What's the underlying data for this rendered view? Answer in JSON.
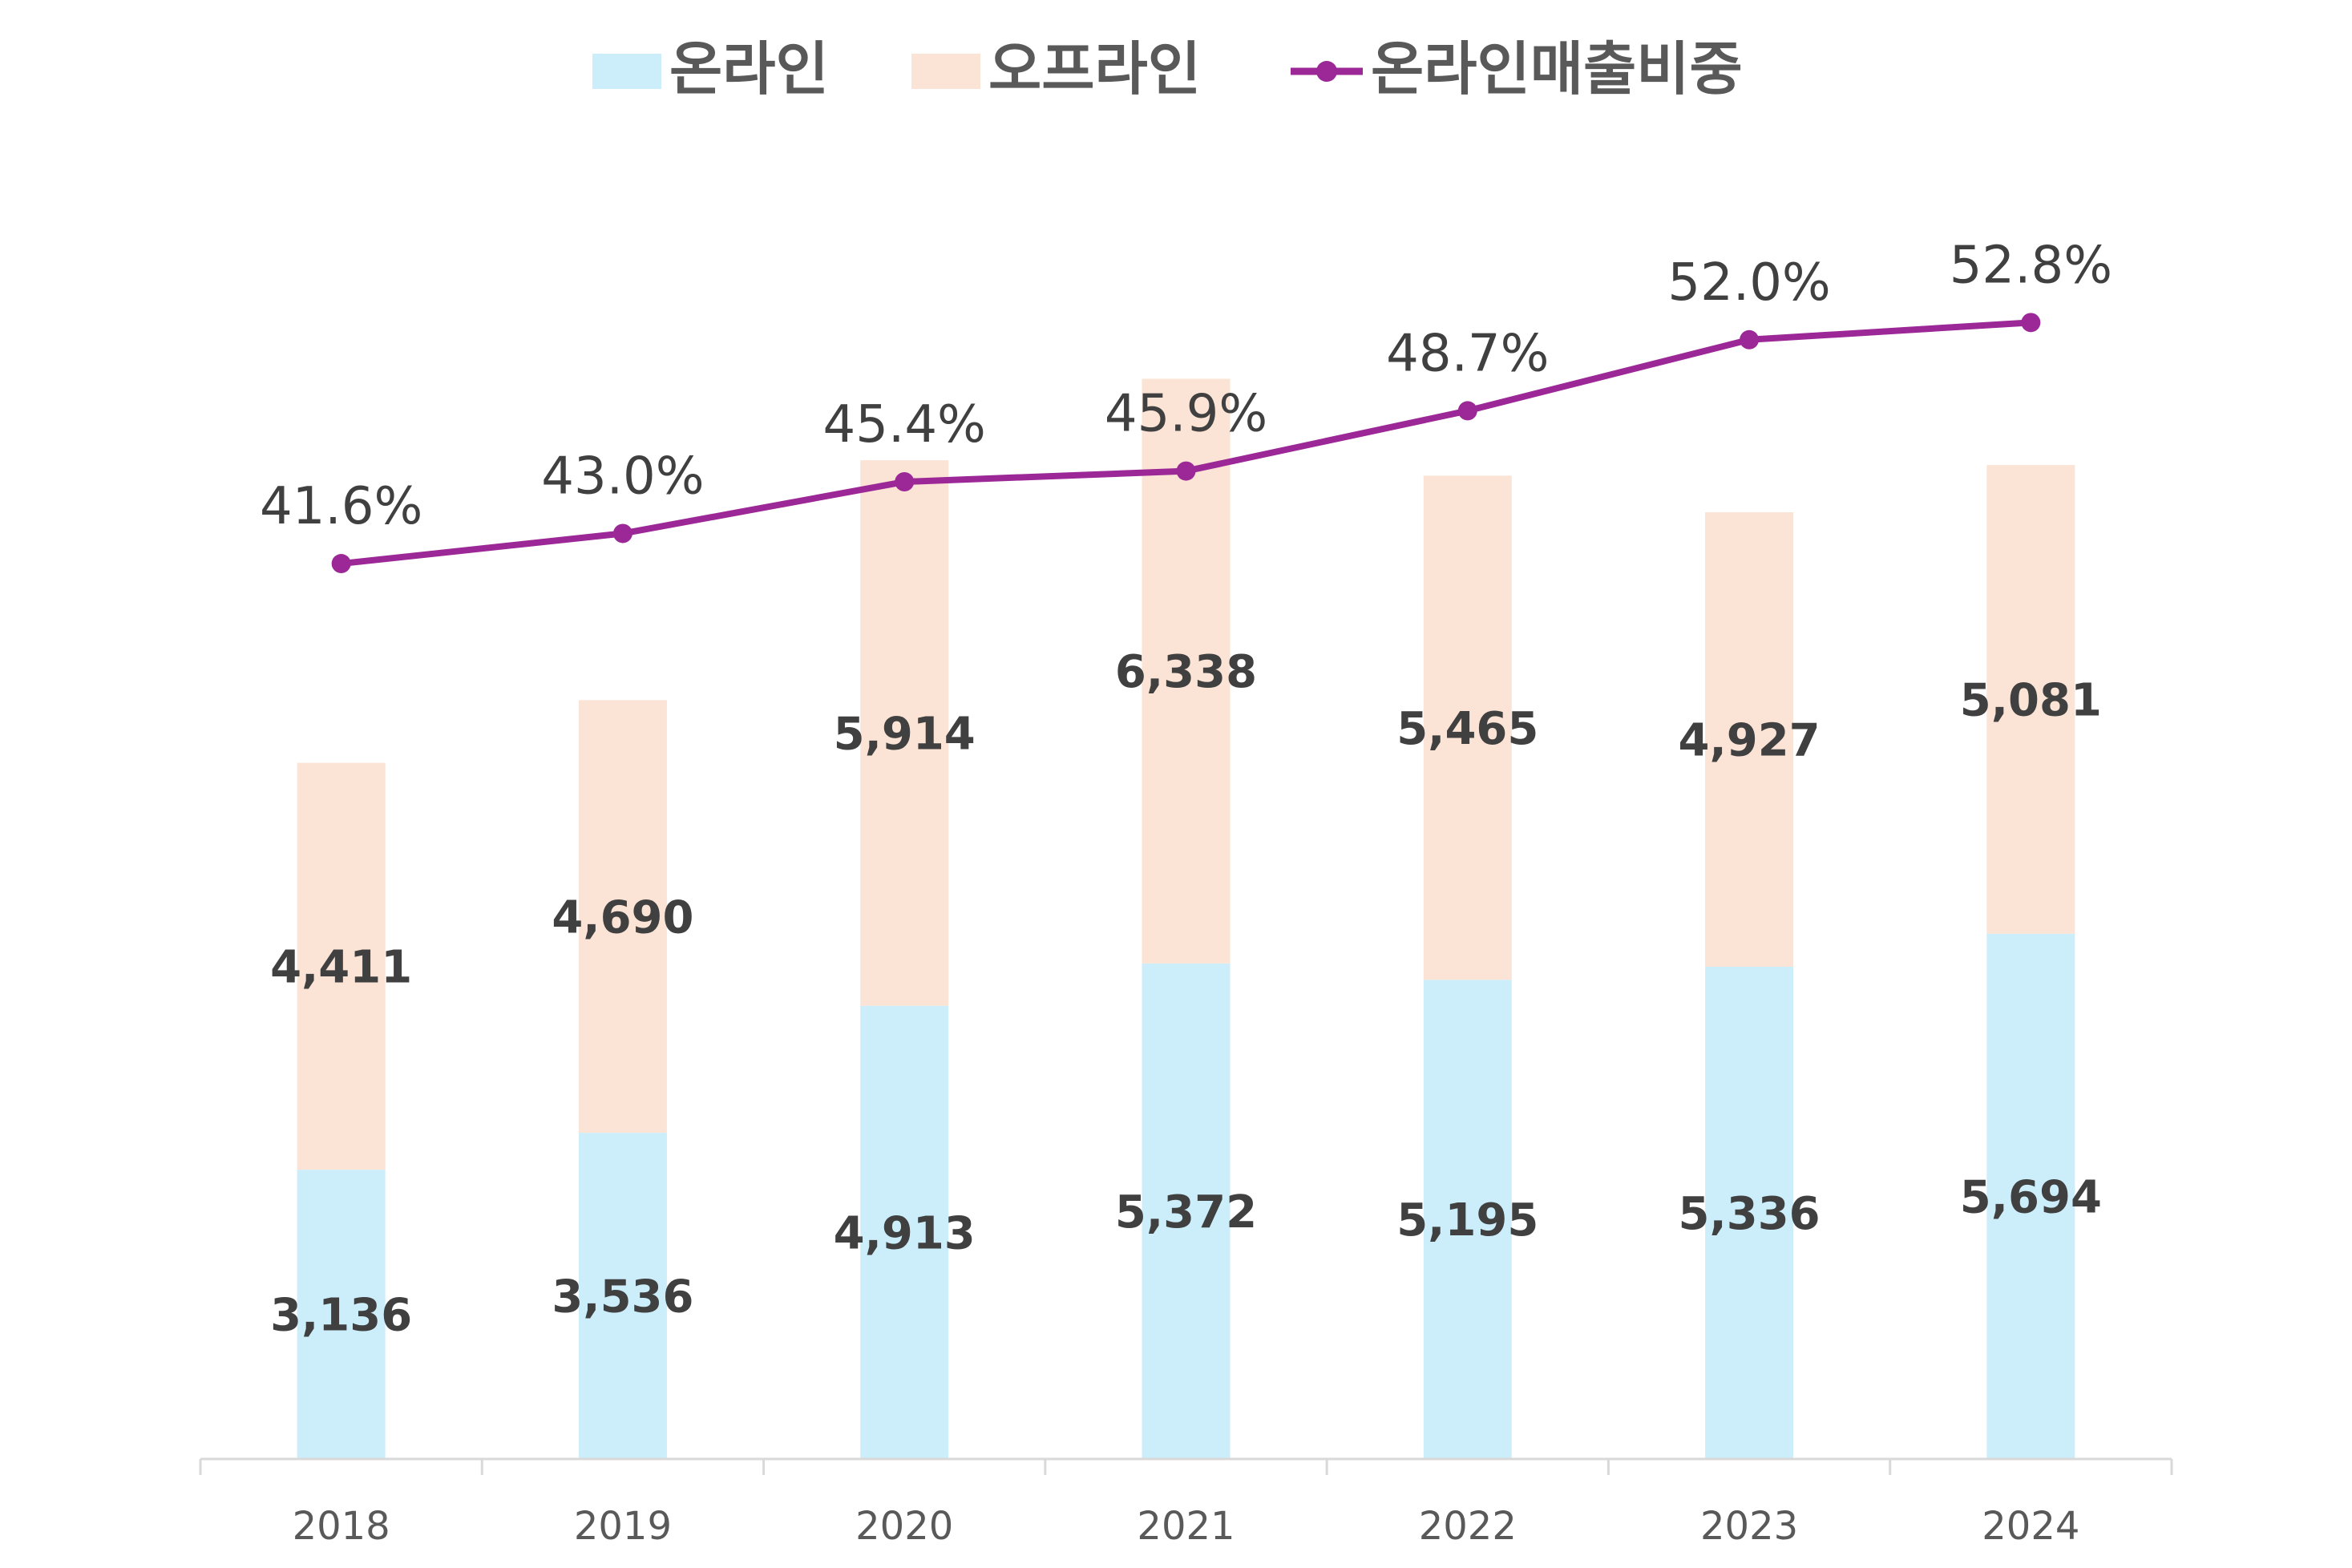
{
  "chart_data": {
    "type": "bar",
    "subtype": "stacked bar with line on secondary axis",
    "title": "",
    "xlabel": "",
    "ylabel": "",
    "categories": [
      "2018",
      "2019",
      "2020",
      "2021",
      "2022",
      "2023",
      "2024"
    ],
    "series": [
      {
        "name": "온라인",
        "type": "bar",
        "color": "#CCEEFB",
        "values": [
          3136,
          3536,
          4913,
          5372,
          5195,
          5336,
          5694
        ],
        "labels": [
          "3,136",
          "3,536",
          "4,913",
          "5,372",
          "5,195",
          "5,336",
          "5,694"
        ]
      },
      {
        "name": "오프라인",
        "type": "bar",
        "color": "#FBE3D6",
        "values": [
          4411,
          4690,
          5914,
          6338,
          5465,
          4927,
          5081
        ],
        "labels": [
          "4,411",
          "4,690",
          "5,914",
          "6,338",
          "5,465",
          "4,927",
          "5,081"
        ]
      },
      {
        "name": "온라인매출비중",
        "type": "line",
        "axis": "secondary",
        "color": "#9B2896",
        "values": [
          41.6,
          43.0,
          45.4,
          45.9,
          48.7,
          52.0,
          52.8
        ],
        "labels": [
          "41.6%",
          "43.0%",
          "45.4%",
          "45.9%",
          "48.7%",
          "52.0%",
          "52.8%"
        ]
      }
    ],
    "ylim": [
      0,
      14000
    ],
    "y2lim": [
      0,
      60
    ],
    "y_axis_visible": false,
    "grid": false,
    "legend": "top-center"
  }
}
